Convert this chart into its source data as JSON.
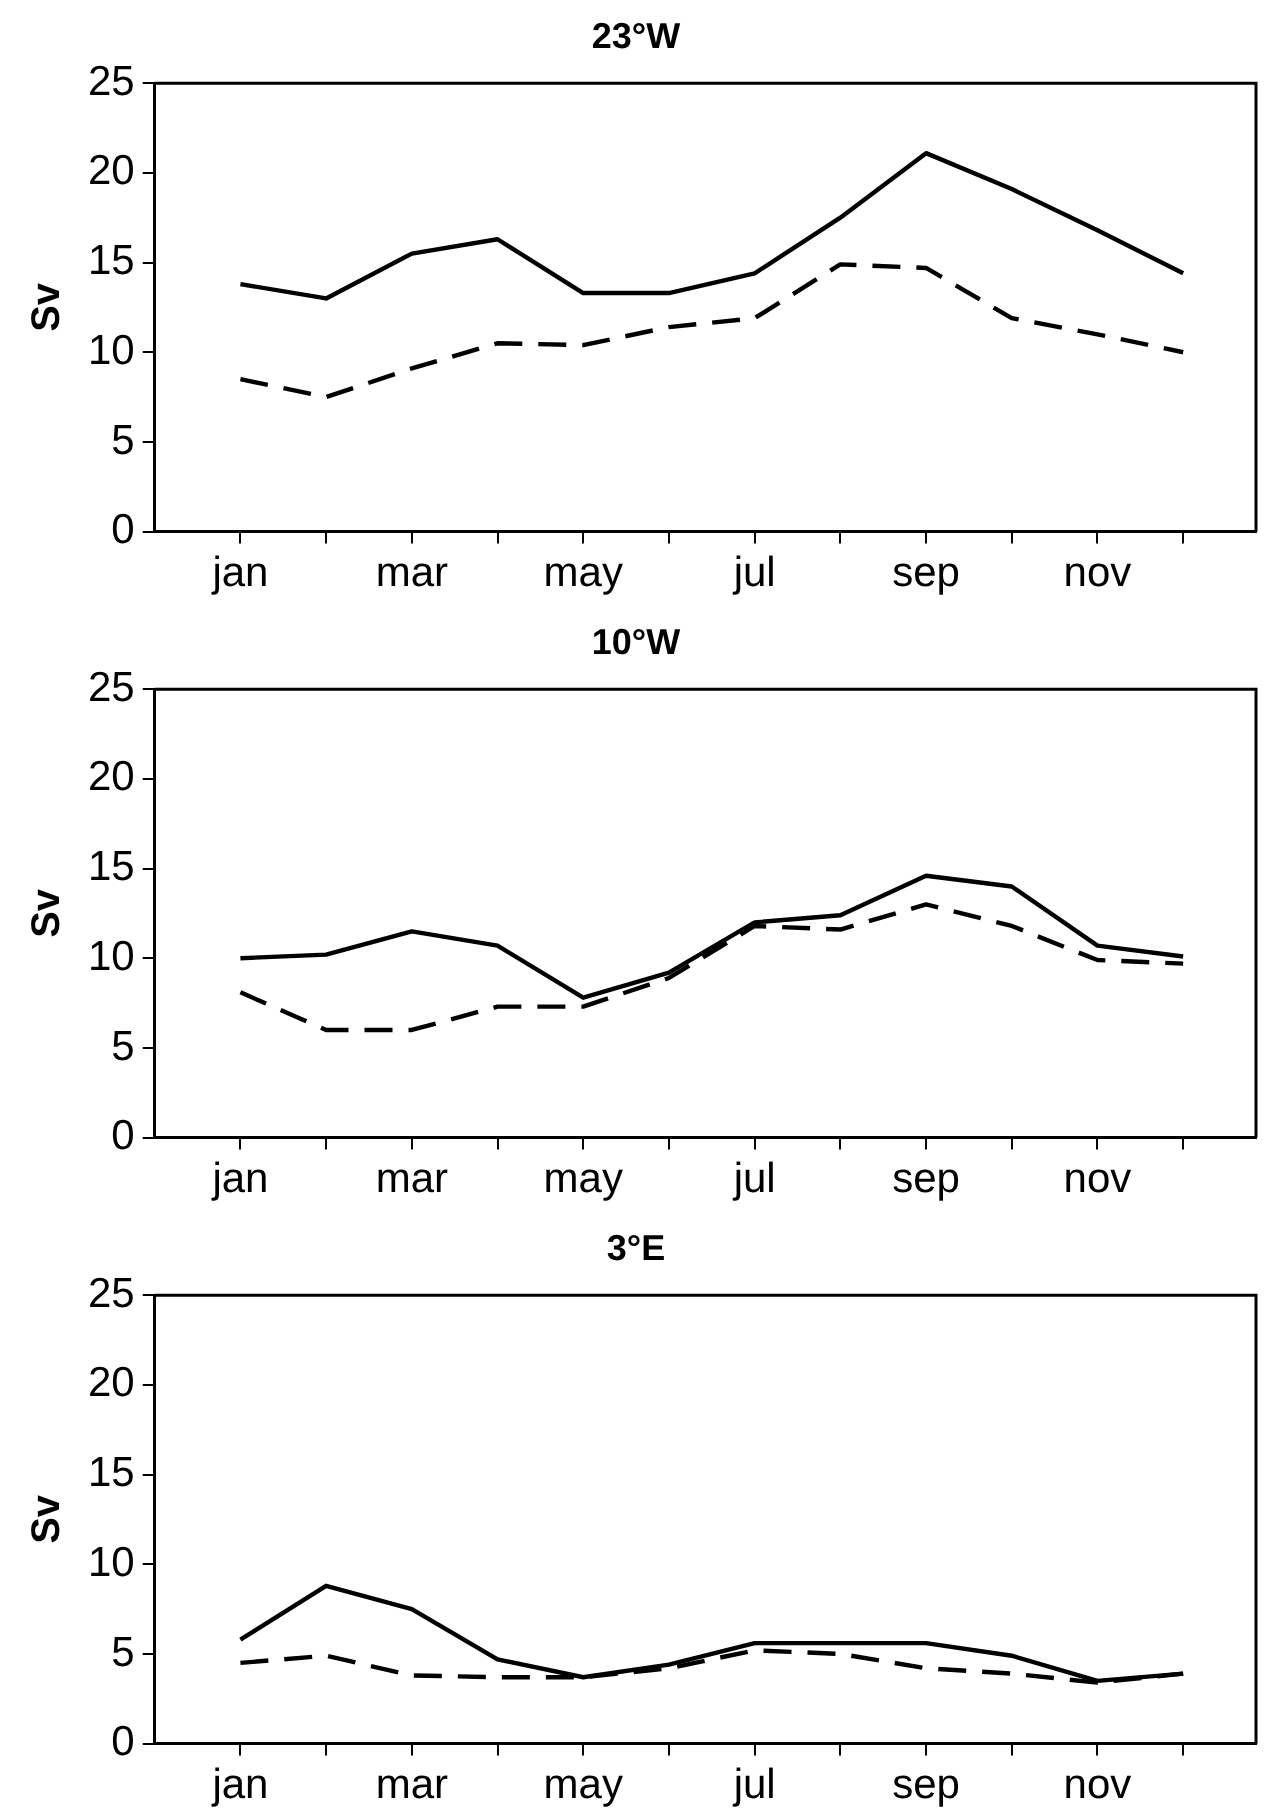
{
  "chart_data": [
    {
      "type": "line",
      "title": "23°W",
      "ylabel": "Sv",
      "categories": [
        "jan",
        null,
        "mar",
        null,
        "may",
        null,
        "jul",
        null,
        "sep",
        null,
        "nov",
        null
      ],
      "ylim": [
        0,
        25
      ],
      "yticks": [
        0,
        5,
        10,
        15,
        20,
        25
      ],
      "grid": false,
      "legend": false,
      "marker": "none",
      "series": [
        {
          "color": "#000000",
          "line_style": "solid",
          "values": [
            13.8,
            13.0,
            15.5,
            16.3,
            13.3,
            13.3,
            14.4,
            17.5,
            21.1,
            19.1,
            16.8,
            14.4
          ]
        },
        {
          "color": "#000000",
          "line_style": "dashed",
          "values": [
            8.5,
            7.5,
            9.1,
            10.5,
            10.4,
            11.4,
            11.9,
            14.9,
            14.7,
            11.9,
            11.0,
            10.0
          ]
        }
      ]
    },
    {
      "type": "line",
      "title": "10°W",
      "ylabel": "Sv",
      "categories": [
        "jan",
        null,
        "mar",
        null,
        "may",
        null,
        "jul",
        null,
        "sep",
        null,
        "nov",
        null
      ],
      "ylim": [
        0,
        25
      ],
      "yticks": [
        0,
        5,
        10,
        15,
        20,
        25
      ],
      "grid": false,
      "legend": false,
      "marker": "none",
      "series": [
        {
          "color": "#000000",
          "line_style": "solid",
          "values": [
            10.0,
            10.2,
            11.5,
            10.7,
            7.8,
            9.2,
            12.0,
            12.4,
            14.6,
            14.0,
            10.7,
            10.1
          ]
        },
        {
          "color": "#000000",
          "line_style": "dashed",
          "values": [
            8.1,
            6.0,
            6.0,
            7.3,
            7.3,
            8.9,
            11.8,
            11.6,
            13.0,
            11.8,
            9.9,
            9.7
          ]
        }
      ]
    },
    {
      "type": "line",
      "title": "3°E",
      "ylabel": "Sv",
      "categories": [
        "jan",
        null,
        "mar",
        null,
        "may",
        null,
        "jul",
        null,
        "sep",
        null,
        "nov",
        null
      ],
      "ylim": [
        0,
        25
      ],
      "yticks": [
        0,
        5,
        10,
        15,
        20,
        25
      ],
      "grid": false,
      "legend": false,
      "marker": "none",
      "series": [
        {
          "color": "#000000",
          "line_style": "solid",
          "values": [
            5.8,
            8.8,
            7.5,
            4.7,
            3.7,
            4.4,
            5.6,
            5.6,
            5.6,
            4.9,
            3.5,
            3.9
          ]
        },
        {
          "color": "#000000",
          "line_style": "dashed",
          "values": [
            4.5,
            4.9,
            3.8,
            3.7,
            3.7,
            4.2,
            5.2,
            5.0,
            4.2,
            3.9,
            3.4,
            3.9
          ]
        }
      ]
    }
  ]
}
